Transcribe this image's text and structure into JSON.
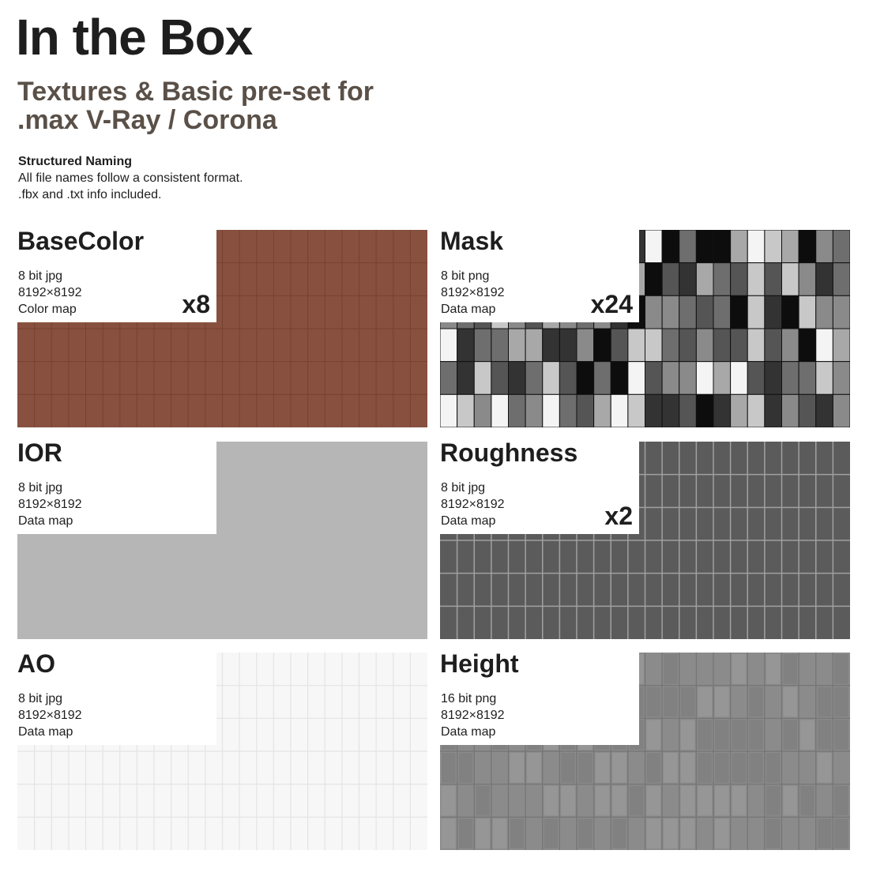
{
  "header": {
    "title": "In the Box",
    "subtitle": [
      "Textures & Basic pre-set for",
      ".max V-Ray / Corona"
    ]
  },
  "naming": {
    "heading": "Structured Naming",
    "lines": [
      "All file names follow a consistent format.",
      ".fbx and .txt info included."
    ]
  },
  "cards": [
    {
      "name": "BaseColor",
      "format": "8 bit jpg",
      "resolution": "8192×8192",
      "map_type": "Color map",
      "count": "x8"
    },
    {
      "name": "Mask",
      "format": "8 bit png",
      "resolution": "8192×8192",
      "map_type": "Data map",
      "count": "x24"
    },
    {
      "name": "IOR",
      "format": "8 bit jpg",
      "resolution": "8192×8192",
      "map_type": "Data map"
    },
    {
      "name": "Roughness",
      "format": "8 bit jpg",
      "resolution": "8192×8192",
      "map_type": "Data map",
      "count": "x2"
    },
    {
      "name": "AO",
      "format": "8 bit jpg",
      "resolution": "8192×8192",
      "map_type": "Data map"
    },
    {
      "name": "Height",
      "format": "16 bit png",
      "resolution": "8192×8192",
      "map_type": "Data map"
    }
  ]
}
